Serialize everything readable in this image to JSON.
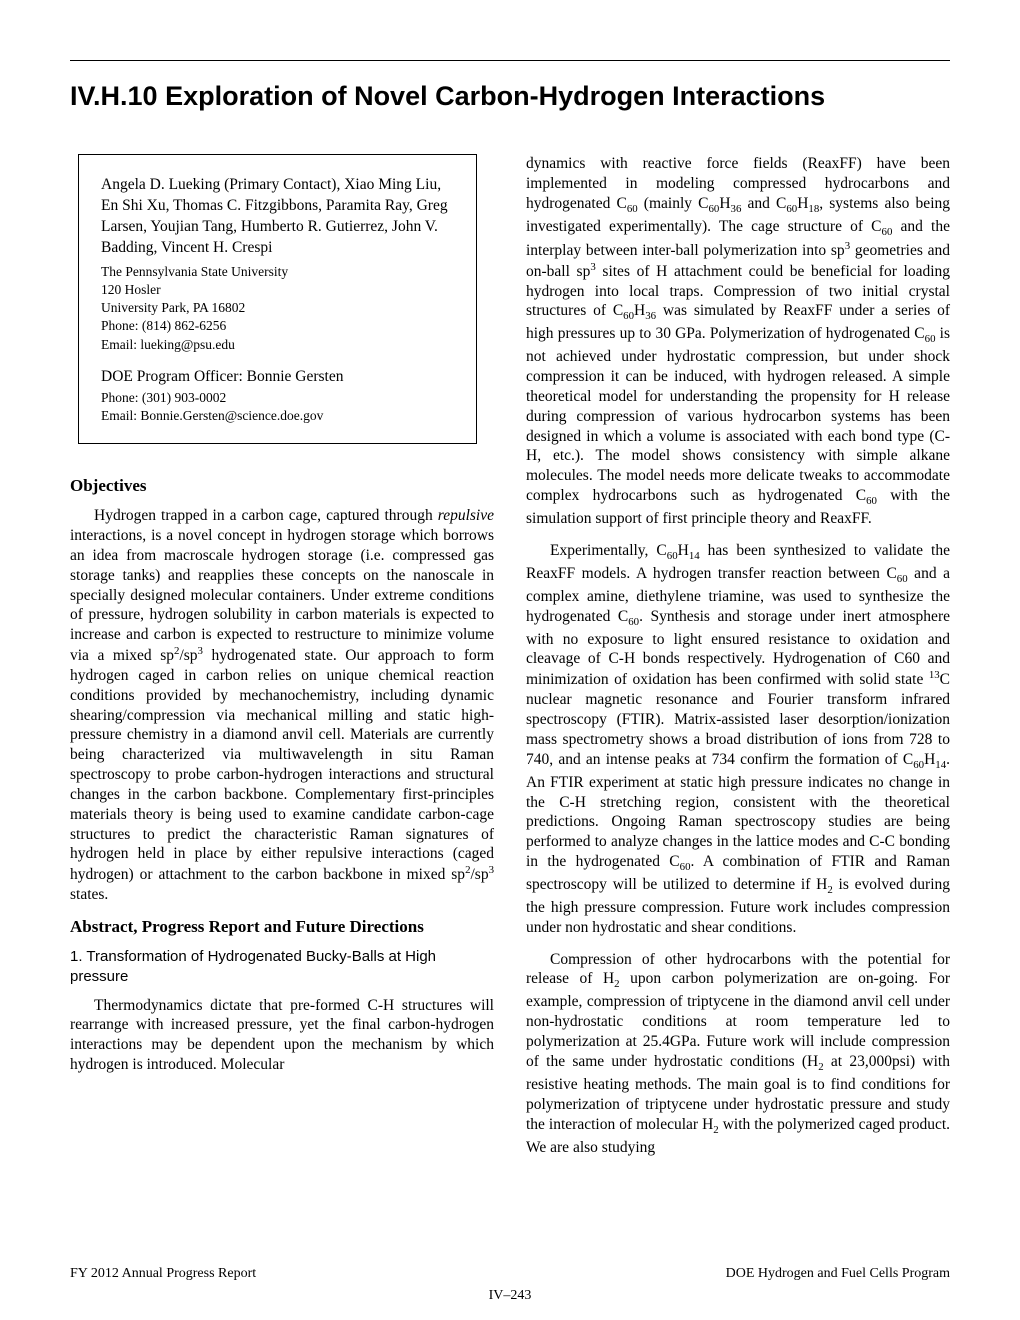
{
  "title": "IV.H.10  Exploration of Novel Carbon-Hydrogen Interactions",
  "infobox": {
    "authors": "Angela D. Lueking (Primary Contact), Xiao Ming Liu, En Shi Xu, Thomas C. Fitzgibbons, Paramita Ray, Greg Larsen, Youjian Tang, Humberto R. Gutierrez, John V. Badding, Vincent H. Crespi",
    "affil_institution": "The Pennsylvania State University",
    "affil_addr1": "120 Hosler",
    "affil_addr2": "University Park, PA  16802",
    "affil_phone": "Phone: (814) 862-6256",
    "affil_email": "Email: lueking@psu.edu",
    "officer_label": "DOE Program Officer: Bonnie Gersten",
    "officer_phone": "Phone: (301) 903-0002",
    "officer_email": "Email: Bonnie.Gersten@science.doe.gov"
  },
  "sections": {
    "objectives_heading": "Objectives",
    "abstract_heading": "Abstract, Progress Report and Future Directions",
    "sub1_heading": "1. Transformation of Hydrogenated Bucky-Balls at High pressure"
  },
  "footer": {
    "left": "FY 2012 Annual Progress Report",
    "right": "DOE Hydrogen and Fuel Cells Program",
    "center": "IV–243"
  }
}
